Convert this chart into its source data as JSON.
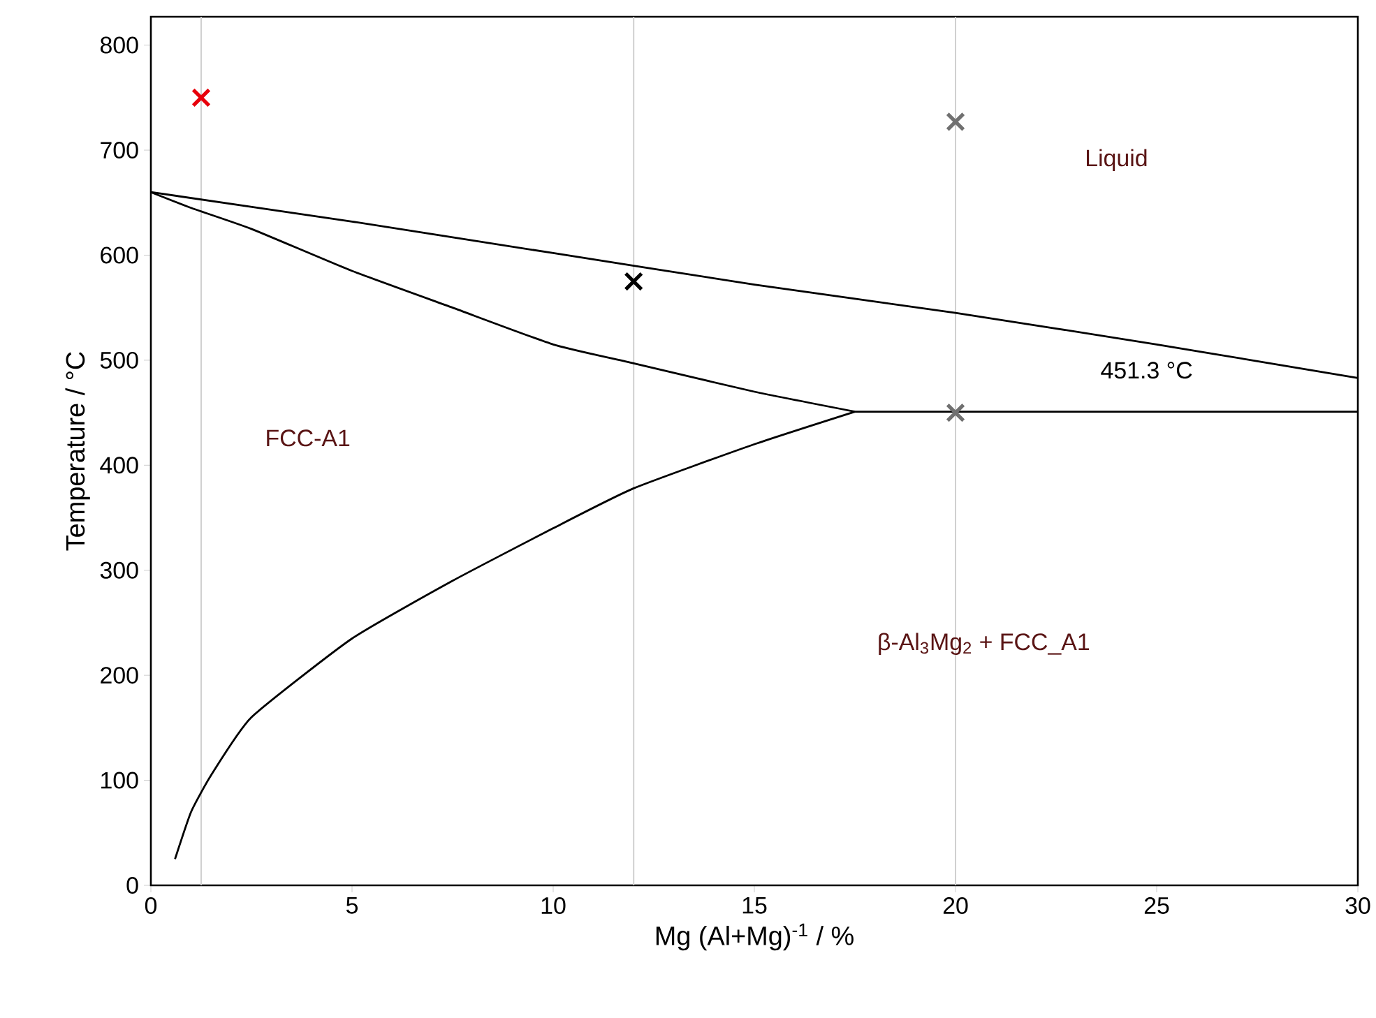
{
  "chart_data": {
    "type": "line",
    "xlabel": "Mg (Al+Mg)$^{-1}$ / %",
    "ylabel": "Temperature / °C",
    "xlim": [
      0,
      30
    ],
    "ylim": [
      0,
      827
    ],
    "xticks": [
      0,
      5,
      10,
      15,
      20,
      25,
      30
    ],
    "yticks": [
      0,
      100,
      200,
      300,
      400,
      500,
      600,
      700,
      800
    ],
    "grid": false,
    "marker": "none",
    "line_style": "solid",
    "series": [
      {
        "color": "#000000",
        "x": [
          0,
          5,
          10,
          15,
          20,
          25,
          30
        ],
        "values": [
          660,
          632,
          602,
          572,
          545,
          515,
          483
        ]
      },
      {
        "color": "#000000",
        "x": [
          0,
          1,
          2.5,
          5,
          7.5,
          10,
          12,
          15,
          17.5
        ],
        "values": [
          660,
          645,
          625,
          585,
          550,
          515,
          497,
          470,
          451
        ]
      },
      {
        "color": "#000000",
        "x": [
          0.6,
          1,
          1.5,
          2.5,
          5,
          7.5,
          10,
          12,
          15,
          17.5
        ],
        "values": [
          25,
          70,
          105,
          160,
          235,
          290,
          340,
          378,
          420,
          451
        ]
      },
      {
        "color": "#000000",
        "x": [
          17.5,
          30
        ],
        "values": [
          451,
          451
        ]
      },
      {
        "type": "scatter",
        "marker": "cross",
        "x": [
          1.25,
          12,
          20,
          20
        ],
        "values": [
          750,
          575,
          727,
          450
        ],
        "colors": [
          "#e8000b",
          "#000000",
          "#707070",
          "#707070"
        ]
      }
    ],
    "ref_lines": [
      {
        "axis": "x",
        "value": 1.25,
        "color": "#d0d0d0"
      },
      {
        "axis": "x",
        "value": 12,
        "color": "#d0d0d0"
      },
      {
        "axis": "x",
        "value": 20,
        "color": "#d0d0d0"
      }
    ],
    "annotations": [
      "Liquid",
      "FCC-A1",
      "β-Al$_{3}$Mg$_{2}$ + FCC_A1",
      "451.3 °C"
    ]
  }
}
